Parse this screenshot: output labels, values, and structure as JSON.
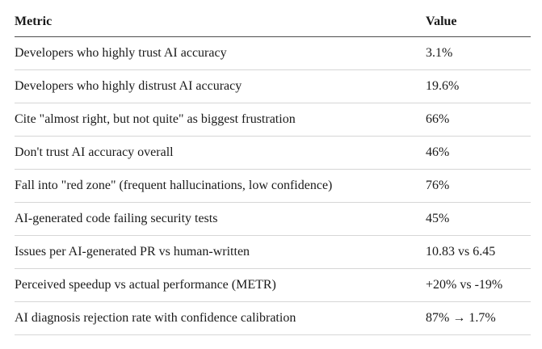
{
  "chart_data": {
    "type": "table",
    "title": "",
    "columns": [
      "Metric",
      "Value"
    ],
    "rows": [
      {
        "metric": "Developers who highly trust AI accuracy",
        "value": "3.1%"
      },
      {
        "metric": "Developers who highly distrust AI accuracy",
        "value": "19.6%"
      },
      {
        "metric": "Cite \"almost right, but not quite\" as biggest frustration",
        "value": "66%"
      },
      {
        "metric": "Don't trust AI accuracy overall",
        "value": "46%"
      },
      {
        "metric": "Fall into \"red zone\" (frequent hallucinations, low confidence)",
        "value": "76%"
      },
      {
        "metric": "AI-generated code failing security tests",
        "value": "45%"
      },
      {
        "metric": "Issues per AI-generated PR vs human-written",
        "value": "10.83 vs 6.45"
      },
      {
        "metric": "Perceived speedup vs actual performance (METR)",
        "value": "+20% vs -19%"
      },
      {
        "metric": "AI diagnosis rejection rate with confidence calibration",
        "value": "87% → 1.7%"
      }
    ],
    "layout": {
      "grid": "horizontal row rules only",
      "header_rule_color": "#4d4d4d",
      "row_rule_color": "#d6d6d6",
      "text_color": "#1a1a1a",
      "background_color": "#ffffff"
    }
  }
}
